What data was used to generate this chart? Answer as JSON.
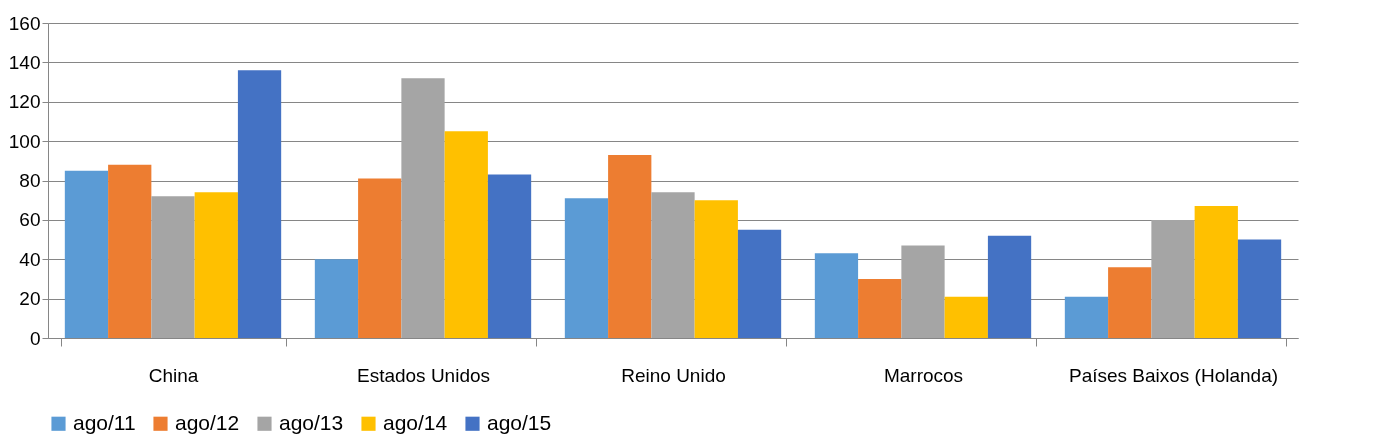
{
  "chart_data": {
    "type": "bar",
    "categories": [
      "China",
      "Estados Unidos",
      "Reino Unido",
      "Marrocos",
      "Países Baixos (Holanda)"
    ],
    "series": [
      {
        "name": "ago/11",
        "color": "#5b9bd5",
        "values": [
          85,
          40,
          71,
          43,
          21
        ]
      },
      {
        "name": "ago/12",
        "color": "#ed7d31",
        "values": [
          88,
          81,
          93,
          30,
          36
        ]
      },
      {
        "name": "ago/13",
        "color": "#a5a5a5",
        "values": [
          72,
          132,
          74,
          47,
          60
        ]
      },
      {
        "name": "ago/14",
        "color": "#ffc000",
        "values": [
          74,
          105,
          70,
          21,
          67
        ]
      },
      {
        "name": "ago/15",
        "color": "#4472c4",
        "values": [
          136,
          83,
          55,
          52,
          50
        ]
      }
    ],
    "ylim": [
      0,
      160
    ],
    "yticks": [
      0,
      20,
      40,
      60,
      80,
      100,
      120,
      140,
      160
    ],
    "grid": "y",
    "legend": "bottom"
  }
}
